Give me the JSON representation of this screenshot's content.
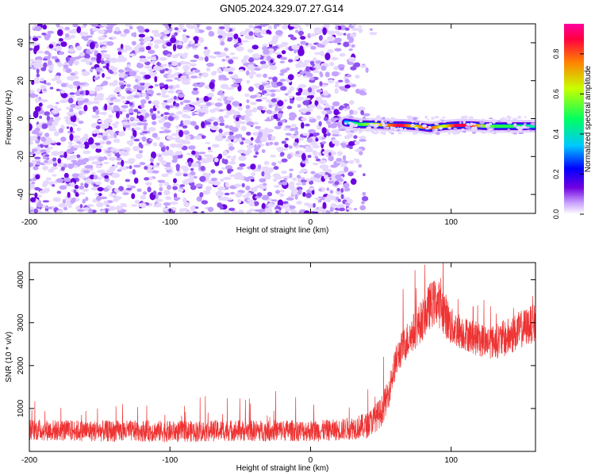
{
  "chart_data": [
    {
      "type": "heatmap",
      "title": "GN05.2024.329.07.27.G14",
      "xlabel": "Height of straight line (km)",
      "ylabel": "Frequency (Hz)",
      "xlim": [
        -200,
        160
      ],
      "ylim": [
        -50,
        50
      ],
      "xticks": [
        -200,
        -100,
        0,
        100
      ],
      "yticks": [
        -40,
        -20,
        0,
        20,
        40
      ],
      "grid": false,
      "colorbar": {
        "label": "Normalized spectral amplitude",
        "range": [
          0,
          0.95
        ],
        "ticks": [
          0.0,
          0.2,
          0.4,
          0.6,
          0.8
        ],
        "colors": [
          "#ffffff",
          "#c8a0ff",
          "#7000e0",
          "#0000ff",
          "#00c8ff",
          "#00ff60",
          "#c8ff00",
          "#ff8000",
          "#ff0040",
          "#ff00a0"
        ]
      },
      "features": {
        "noise_region_x": [
          -200,
          45
        ],
        "signal_start_x": 25,
        "signal_track": [
          {
            "x": 25,
            "freq": -2.0,
            "amp": 0.35
          },
          {
            "x": 35,
            "freq": -3.0,
            "amp": 0.5
          },
          {
            "x": 45,
            "freq": -3.0,
            "amp": 0.6
          },
          {
            "x": 55,
            "freq": -3.5,
            "amp": 0.75
          },
          {
            "x": 65,
            "freq": -3.5,
            "amp": 0.9
          },
          {
            "x": 75,
            "freq": -4.0,
            "amp": 0.65
          },
          {
            "x": 85,
            "freq": -5.0,
            "amp": 0.85
          },
          {
            "x": 95,
            "freq": -4.0,
            "amp": 0.6
          },
          {
            "x": 105,
            "freq": -3.5,
            "amp": 0.9
          },
          {
            "x": 115,
            "freq": -3.5,
            "amp": 0.85
          },
          {
            "x": 125,
            "freq": -4.0,
            "amp": 0.55
          },
          {
            "x": 135,
            "freq": -4.0,
            "amp": 0.5
          },
          {
            "x": 145,
            "freq": -4.0,
            "amp": 0.5
          },
          {
            "x": 155,
            "freq": -4.0,
            "amp": 0.45
          },
          {
            "x": 160,
            "freq": -4.0,
            "amp": 0.4
          }
        ]
      }
    },
    {
      "type": "line",
      "xlabel": "Height of straight line (km)",
      "ylabel": "SNR (10 * v/v)",
      "xlim": [
        -200,
        160
      ],
      "ylim": [
        0,
        4400
      ],
      "xticks": [
        -200,
        -100,
        0,
        100
      ],
      "yticks": [
        1000,
        2000,
        3000,
        4000
      ],
      "grid": false,
      "color": "#ee3333",
      "series": [
        {
          "x": [
            -200,
            -180,
            -160,
            -140,
            -120,
            -100,
            -80,
            -60,
            -40,
            -20,
            0,
            20,
            40,
            50,
            55,
            58,
            60,
            62,
            65,
            70,
            75,
            80,
            85,
            90,
            95,
            100,
            110,
            120,
            130,
            140,
            150,
            160
          ],
          "values": [
            500,
            490,
            480,
            470,
            480,
            460,
            470,
            490,
            480,
            490,
            480,
            500,
            600,
            900,
            1300,
            1750,
            2000,
            2200,
            2400,
            2650,
            2850,
            3100,
            3400,
            3500,
            3250,
            2900,
            2750,
            2600,
            2550,
            2650,
            2850,
            3000
          ],
          "noise": [
            250,
            250,
            250,
            250,
            250,
            250,
            250,
            250,
            250,
            250,
            250,
            250,
            300,
            350,
            350,
            350,
            400,
            400,
            400,
            450,
            450,
            500,
            550,
            550,
            550,
            450,
            400,
            400,
            400,
            450,
            450,
            450
          ]
        }
      ]
    }
  ]
}
